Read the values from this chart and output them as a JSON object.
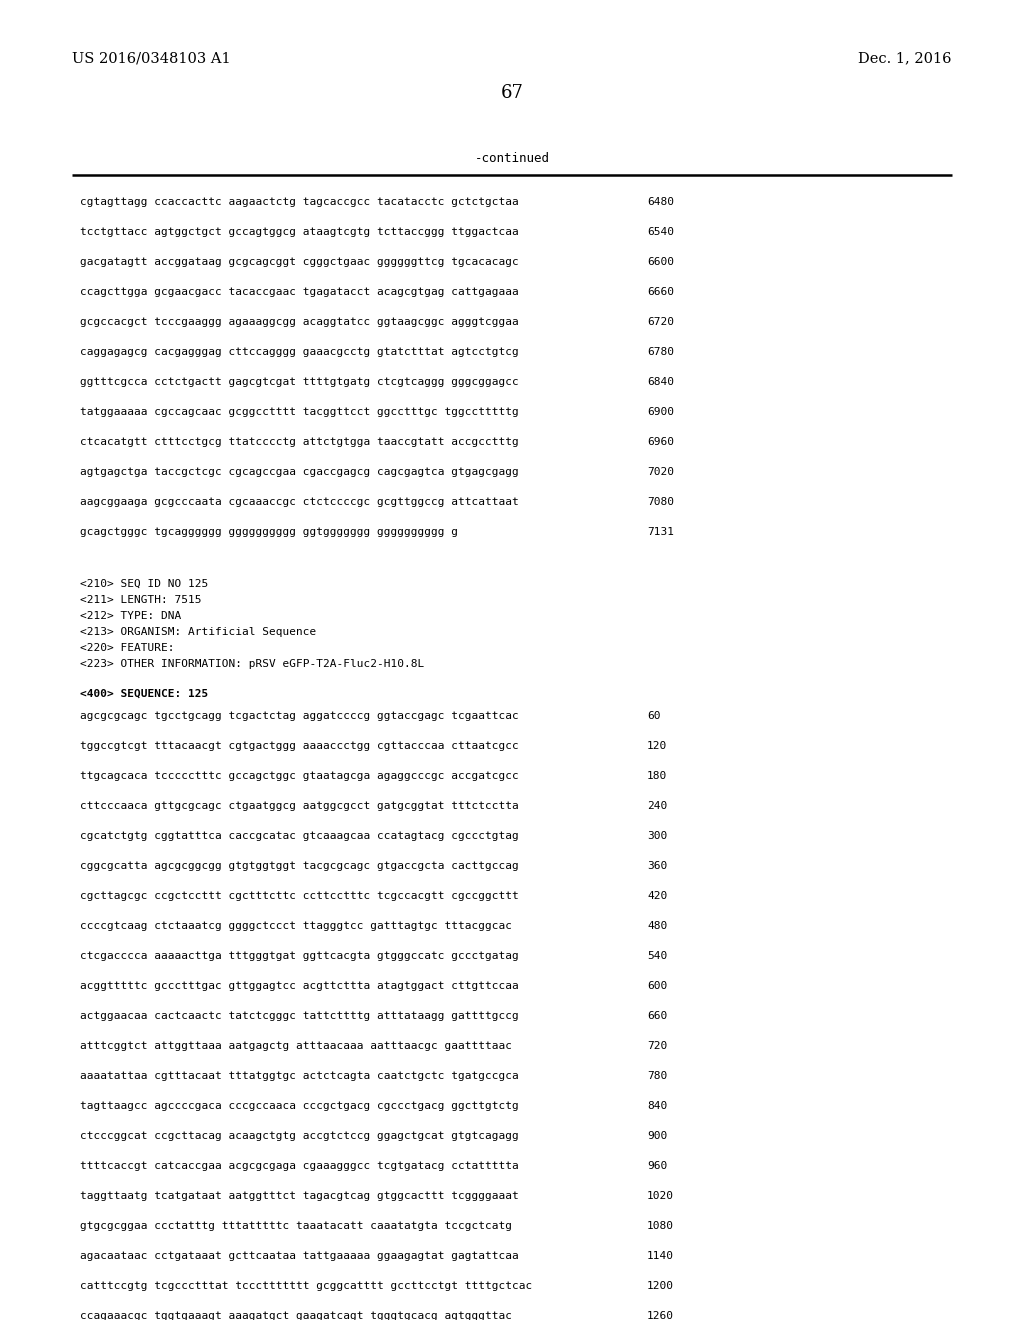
{
  "bg_color": "#ffffff",
  "header_left": "US 2016/0348103 A1",
  "header_right": "Dec. 1, 2016",
  "page_number": "67",
  "continued_label": "-continued",
  "top_sequence_lines": [
    [
      "cgtagttagg ccaccacttc aagaactctg tagcaccgcc tacatacctc gctctgctaa",
      "6480"
    ],
    [
      "tcctgttacc agtggctgct gccagtggcg ataagtcgtg tcttaccggg ttggactcaa",
      "6540"
    ],
    [
      "gacgatagtt accggataag gcgcagcggt cgggctgaac ggggggttcg tgcacacagc",
      "6600"
    ],
    [
      "ccagcttgga gcgaacgacc tacaccgaac tgagatacct acagcgtgag cattgagaaa",
      "6660"
    ],
    [
      "gcgccacgct tcccgaaggg agaaaggcgg acaggtatcc ggtaagcggc agggtcggaa",
      "6720"
    ],
    [
      "caggagagcg cacgagggag cttccagggg gaaacgcctg gtatctttat agtcctgtcg",
      "6780"
    ],
    [
      "ggtttcgcca cctctgactt gagcgtcgat ttttgtgatg ctcgtcaggg gggcggagcc",
      "6840"
    ],
    [
      "tatggaaaaa cgccagcaac gcggcctttt tacggttcct ggcctttgc tggcctttttg",
      "6900"
    ],
    [
      "ctcacatgtt ctttcctgcg ttatcccctg attctgtgga taaccgtatt accgcctttg",
      "6960"
    ],
    [
      "agtgagctga taccgctcgc cgcagccgaa cgaccgagcg cagcgagtca gtgagcgagg",
      "7020"
    ],
    [
      "aagcggaaga gcgcccaata cgcaaaccgc ctctccccgc gcgttggccg attcattaat",
      "7080"
    ],
    [
      "gcagctgggc tgcagggggg gggggggggg ggtggggggg gggggggggg g",
      "7131"
    ]
  ],
  "metadata_lines": [
    "<210> SEQ ID NO 125",
    "<211> LENGTH: 7515",
    "<212> TYPE: DNA",
    "<213> ORGANISM: Artificial Sequence",
    "<220> FEATURE:",
    "<223> OTHER INFORMATION: pRSV eGFP-T2A-Fluc2-H10.8L"
  ],
  "sequence_label": "<400> SEQUENCE: 125",
  "bottom_sequence_lines": [
    [
      "agcgcgcagc tgcctgcagg tcgactctag aggatccccg ggtaccgagc tcgaattcac",
      "60"
    ],
    [
      "tggccgtcgt tttacaacgt cgtgactggg aaaaccctgg cgttacccaa cttaatcgcc",
      "120"
    ],
    [
      "ttgcagcaca tccccctttc gccagctggc gtaatagcga agaggcccgc accgatcgcc",
      "180"
    ],
    [
      "cttcccaaca gttgcgcagc ctgaatggcg aatggcgcct gatgcggtat tttctcctta",
      "240"
    ],
    [
      "cgcatctgtg cggtatttca caccgcatac gtcaaagcaa ccatagtacg cgccctgtag",
      "300"
    ],
    [
      "cggcgcatta agcgcggcgg gtgtggtggt tacgcgcagc gtgaccgcta cacttgccag",
      "360"
    ],
    [
      "cgcttagcgc ccgctccttt cgctttcttc ccttcctttc tcgccacgtt cgccggcttt",
      "420"
    ],
    [
      "ccccgtcaag ctctaaatcg ggggctccct ttagggtcc gatttagtgc tttacggcac",
      "480"
    ],
    [
      "ctcgacccca aaaaacttga tttgggtgat ggttcacgta gtgggccatc gccctgatag",
      "540"
    ],
    [
      "acggtttttc gccctttgac gttggagtcc acgttcttta atagtggact cttgttccaa",
      "600"
    ],
    [
      "actggaacaa cactcaactc tatctcgggc tattcttttg atttataagg gattttgccg",
      "660"
    ],
    [
      "atttcggtct attggttaaa aatgagctg atttaacaaa aatttaacgc gaattttaac",
      "720"
    ],
    [
      "aaaatattaa cgtttacaat tttatggtgc actctcagta caatctgctc tgatgccgca",
      "780"
    ],
    [
      "tagttaagcc agccccgaca cccgccaaca cccgctgacg cgccctgacg ggcttgtctg",
      "840"
    ],
    [
      "ctcccggcat ccgcttacag acaagctgtg accgtctccg ggagctgcat gtgtcagagg",
      "900"
    ],
    [
      "ttttcaccgt catcaccgaa acgcgcgaga cgaaagggcc tcgtgatacg cctattttta",
      "960"
    ],
    [
      "taggttaatg tcatgataat aatggtttct tagacgtcag gtggcacttt tcggggaaat",
      "1020"
    ],
    [
      "gtgcgcggaa ccctatttg tttatttttc taaatacatt caaatatgta tccgctcatg",
      "1080"
    ],
    [
      "agacaataac cctgataaat gcttcaataa tattgaaaaa ggaagagtat gagtattcaa",
      "1140"
    ],
    [
      "catttccgtg tcgccctttat tcccttttttt gcggcatttt gccttcctgt ttttgctcac",
      "1200"
    ],
    [
      "ccagaaacgc tggtgaaagt aaagatgct gaagatcagt tgggtgcacg agtgggttac",
      "1260"
    ]
  ]
}
